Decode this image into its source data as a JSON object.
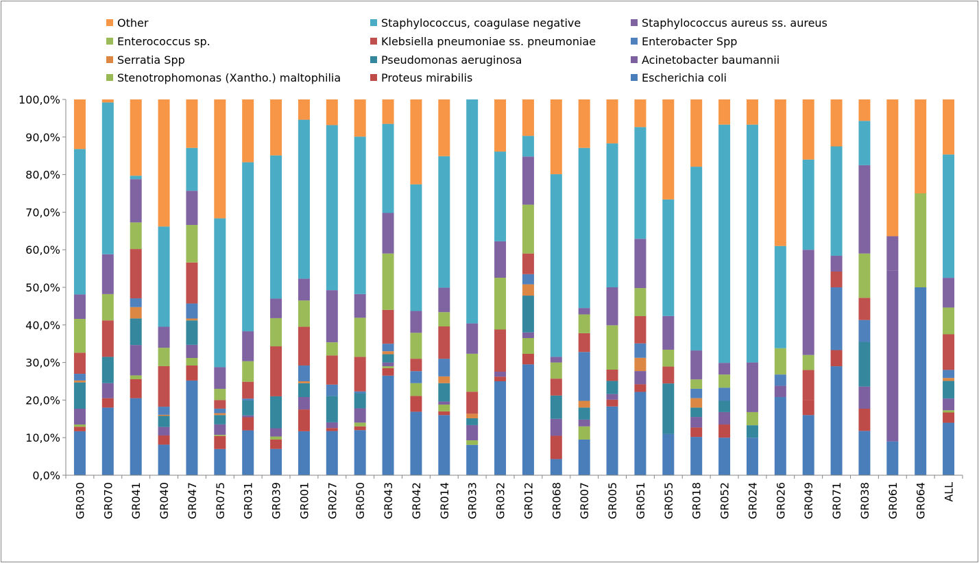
{
  "chart_data": {
    "type": "bar",
    "stacked": "percent",
    "title": "",
    "xlabel": "",
    "ylabel": "",
    "ylim": [
      0,
      1
    ],
    "y_ticks": [
      "0,0%",
      "10,0%",
      "20,0%",
      "30,0%",
      "40,0%",
      "50,0%",
      "60,0%",
      "70,0%",
      "80,0%",
      "90,0%",
      "100,0%"
    ],
    "grid": false,
    "legend_position": "top",
    "categories": [
      "GR030",
      "GR070",
      "GR041",
      "GR040",
      "GR047",
      "GR075",
      "GR031",
      "GR039",
      "GR001",
      "GR027",
      "GR050",
      "GR043",
      "GR042",
      "GR014",
      "GR033",
      "GR032",
      "GR012",
      "GR068",
      "GR007",
      "GR005",
      "GR051",
      "GR055",
      "GR018",
      "GR052",
      "GR024",
      "GR026",
      "GR049",
      "GR071",
      "GR038",
      "GR061",
      "GR064",
      "ALL"
    ],
    "legend_order": [
      "Other",
      "Staphylococcus, coagulase negative",
      "Staphylococcus aureus ss. aureus",
      "Enterococcus sp.",
      "Klebsiella pneumoniae ss. pneumoniae",
      "Enterobacter Spp",
      "Serratia Spp",
      "Pseudomonas aeruginosa",
      "Acinetobacter baumannii",
      "Stenotrophomonas (Xantho.) maltophilia",
      "Proteus mirabilis",
      "Escherichia coli"
    ],
    "series": [
      {
        "name": "Escherichia coli",
        "color": "#4A7EBB",
        "values": [
          11.7,
          18.0,
          20.3,
          8.3,
          25.2,
          7.0,
          12.0,
          7.0,
          11.7,
          11.7,
          12.0,
          26.5,
          16.9,
          16.0,
          8.0,
          24.5,
          29.5,
          4.3,
          9.5,
          18.3,
          22.0,
          11.0,
          10.2,
          10.0,
          10.0,
          20.8,
          16.0,
          29.0,
          11.8,
          9.0,
          50.0,
          14.3
        ]
      },
      {
        "name": "Proteus mirabilis",
        "color": "#BE4B48",
        "values": [
          1.2,
          2.5,
          5.0,
          2.5,
          4.0,
          3.5,
          3.5,
          2.5,
          5.8,
          0.8,
          1.0,
          2.0,
          4.2,
          1.0,
          0,
          1.2,
          2.8,
          6.2,
          0,
          1.8,
          2.0,
          0,
          2.5,
          3.5,
          0,
          0,
          4.0,
          4.3,
          5.9,
          0,
          0,
          2.8
        ]
      },
      {
        "name": "Stenotrophomonas (Xantho.) maltophilia",
        "color": "#98B954",
        "values": [
          0.6,
          0,
          1.0,
          0,
          2.0,
          0.3,
          0,
          0.8,
          0,
          0,
          1.0,
          0.5,
          3.4,
          1.8,
          1.2,
          0,
          4.2,
          0,
          3.5,
          0,
          0,
          0,
          0,
          0,
          0,
          0,
          0,
          0,
          0,
          0,
          0,
          0.6
        ]
      },
      {
        "name": "Acinetobacter baumannii",
        "color": "#7D60A0",
        "values": [
          4.2,
          4.0,
          8.0,
          2.3,
          3.5,
          2.8,
          0.5,
          2.2,
          3.3,
          1.5,
          3.8,
          1.0,
          0,
          0.8,
          4.0,
          1.3,
          1.5,
          4.5,
          1.8,
          1.5,
          3.5,
          0,
          2.8,
          3.3,
          0,
          3.0,
          0,
          0,
          5.9,
          45.5,
          0,
          3.2
        ]
      },
      {
        "name": "Pseudomonas aeruginosa",
        "color": "#35879E",
        "values": [
          7.0,
          7.0,
          7.0,
          3.0,
          6.5,
          2.5,
          4.0,
          8.5,
          3.7,
          7.0,
          4.0,
          2.2,
          0,
          4.9,
          1.8,
          0,
          9.8,
          6.2,
          3.2,
          3.5,
          0,
          13.5,
          2.5,
          3.0,
          3.3,
          0,
          0,
          0,
          11.8,
          0,
          0,
          4.8
        ]
      },
      {
        "name": "Serratia Spp",
        "color": "#DD8745",
        "values": [
          0.5,
          0,
          3.0,
          0.3,
          0.5,
          0.5,
          0,
          0,
          0.5,
          0,
          0,
          0.8,
          0,
          1.8,
          1.2,
          0,
          3.0,
          0,
          1.8,
          0,
          3.5,
          0,
          2.5,
          0,
          0,
          0,
          0,
          0,
          0,
          0,
          0,
          0.8
        ]
      },
      {
        "name": "Enterobacter Spp",
        "color": "#4F81BD",
        "values": [
          1.8,
          0,
          2.3,
          2.2,
          4.0,
          1.2,
          0.5,
          0,
          4.2,
          3.0,
          0.5,
          2.0,
          3.2,
          4.7,
          0,
          0,
          2.7,
          0,
          13.0,
          0,
          3.8,
          0,
          2.5,
          3.5,
          0,
          3.0,
          0,
          16.7,
          5.9,
          0,
          0,
          2.2
        ]
      },
      {
        "name": "Klebsiella pneumoniae ss. pneumoniae",
        "color": "#C0504D",
        "values": [
          5.6,
          9.7,
          13.0,
          11.0,
          10.9,
          2.3,
          4.5,
          13.3,
          10.3,
          7.7,
          9.2,
          9.0,
          3.3,
          8.6,
          5.8,
          11.0,
          5.5,
          4.5,
          5.0,
          3.0,
          7.2,
          4.5,
          0,
          0,
          0,
          0,
          8.0,
          4.2,
          5.9,
          0,
          0,
          9.7
        ]
      },
      {
        "name": "Enterococcus sp.",
        "color": "#9BBB59",
        "values": [
          9.0,
          7.0,
          7.0,
          5.0,
          10.0,
          3.0,
          5.5,
          7.5,
          7.0,
          3.5,
          10.4,
          15.0,
          6.9,
          3.8,
          10.0,
          13.5,
          13.0,
          4.3,
          5.0,
          11.8,
          7.4,
          4.5,
          2.5,
          3.5,
          3.5,
          7.0,
          4.0,
          0,
          11.8,
          0,
          25.0,
          7.3
        ]
      },
      {
        "name": "Staphylococcus aureus ss. aureus",
        "color": "#8064A2",
        "values": [
          6.5,
          10.6,
          11.4,
          5.7,
          9.1,
          5.8,
          8.0,
          5.2,
          5.8,
          13.8,
          6.3,
          10.8,
          5.8,
          6.5,
          8.0,
          9.5,
          12.8,
          1.5,
          1.7,
          10.1,
          13.0,
          9.0,
          7.7,
          3.1,
          13.2,
          0,
          28.0,
          4.2,
          23.5,
          9.1,
          0,
          8.1
        ]
      },
      {
        "name": "Staphylococcus, coagulase negative",
        "color": "#4BACC6",
        "values": [
          38.7,
          40.4,
          0.9,
          27.2,
          11.4,
          39.8,
          45.2,
          38.1,
          42.3,
          43.7,
          41.9,
          23.7,
          33.7,
          35.0,
          59.0,
          23.4,
          5.5,
          48.6,
          42.6,
          38.3,
          29.5,
          31.1,
          48.9,
          63.4,
          63.3,
          27.2,
          24.0,
          29.1,
          11.8,
          0,
          0,
          33.6
        ]
      },
      {
        "name": "Other",
        "color": "#F79646",
        "values": [
          13.2,
          0.8,
          20.1,
          34.5,
          12.9,
          31.8,
          16.8,
          14.9,
          5.4,
          6.8,
          9.9,
          6.5,
          22.6,
          15.1,
          0,
          13.6,
          9.7,
          19.9,
          12.9,
          11.7,
          7.3,
          26.7,
          17.9,
          6.7,
          6.7,
          39.0,
          16.0,
          12.5,
          5.7,
          36.4,
          25.0,
          15.0
        ]
      }
    ]
  }
}
